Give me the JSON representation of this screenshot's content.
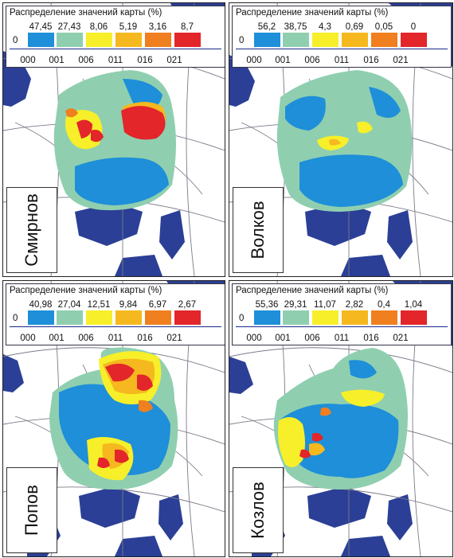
{
  "colors": {
    "sea": "#2b3f96",
    "land": "#ffffff",
    "borders": "#7a7a8a",
    "classes": [
      "#ffffff",
      "#1e8fd8",
      "#8fcfb0",
      "#f7ef2a",
      "#f5b81e",
      "#ef7f1f",
      "#e2262a"
    ]
  },
  "legend": {
    "title": "Распределение значений карты (%)",
    "codes": [
      "000",
      "001",
      "006",
      "011",
      "016",
      "021"
    ]
  },
  "panels": [
    {
      "name": "Смирнов",
      "zero": "0",
      "values": [
        "47,45",
        "27,43",
        "8,06",
        "5,19",
        "3,16",
        "8,7"
      ],
      "distribution": [
        0,
        47.45,
        27.43,
        8.06,
        5.19,
        3.16,
        8.7
      ]
    },
    {
      "name": "Волков",
      "zero": "0",
      "values": [
        "56,2",
        "38,75",
        "4,3",
        "0,69",
        "0,05",
        "0"
      ],
      "distribution": [
        0,
        56.2,
        38.75,
        4.3,
        0.69,
        0.05,
        0
      ]
    },
    {
      "name": "Попов",
      "zero": "0",
      "values": [
        "40,98",
        "27,04",
        "12,51",
        "9,84",
        "6,97",
        "2,67"
      ],
      "distribution": [
        0,
        40.98,
        27.04,
        12.51,
        9.84,
        6.97,
        2.67
      ]
    },
    {
      "name": "Козлов",
      "zero": "0",
      "values": [
        "55,36",
        "29,31",
        "11,07",
        "2,82",
        "0,4",
        "1,04"
      ],
      "distribution": [
        0,
        55.36,
        29.31,
        11.07,
        2.82,
        0.4,
        1.04
      ]
    }
  ]
}
